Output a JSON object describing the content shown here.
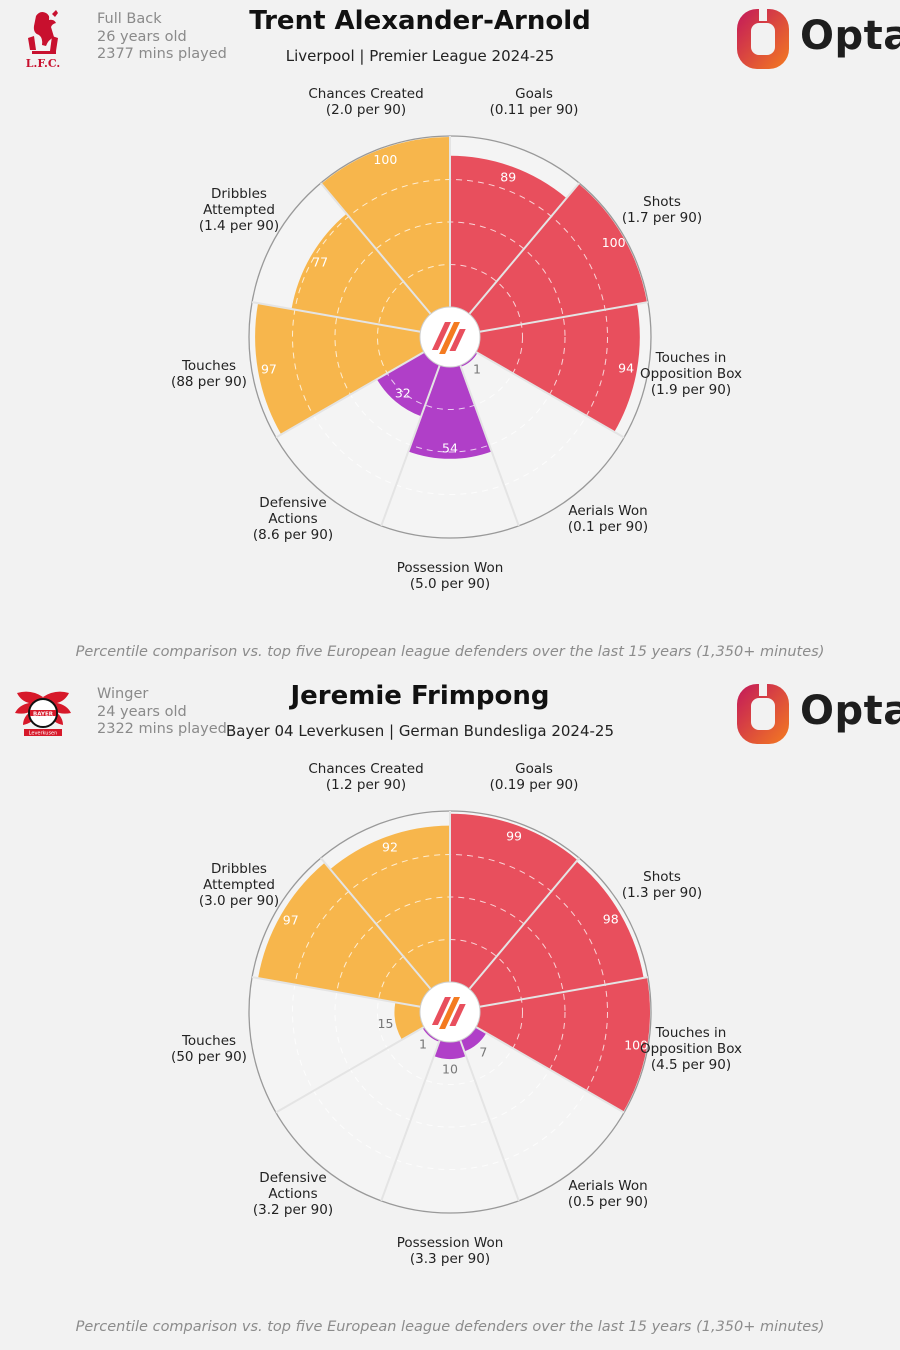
{
  "colors": {
    "attacking": "#e84f5d",
    "possession": "#f7b64c",
    "defending": "#b03fc8",
    "background": "#f2f2f2",
    "grid": "#ffffff",
    "opta_gradient": [
      "#c2185b",
      "#f47b20"
    ]
  },
  "footnote": "Percentile comparison vs. top five European league defenders over the last 15 years (1,350+ minutes)",
  "players": [
    {
      "position": "Full Back",
      "age": "26 years old",
      "minutes": "2377 mins played",
      "name": "Trent Alexander-Arnold",
      "team_league": "Liverpool | Premier League 2024-25",
      "club_crest": "liverpool-crest",
      "logo_text": "Opta"
    },
    {
      "position": "Winger",
      "age": "24 years old",
      "minutes": "2322 mins played",
      "name": "Jeremie Frimpong",
      "team_league": "Bayer 04 Leverkusen | German Bundesliga 2024-25",
      "club_crest": "leverkusen-crest",
      "logo_text": "Opta"
    }
  ],
  "chart_data": [
    {
      "type": "polar-bar",
      "title": "Trent Alexander-Arnold",
      "rlim": [
        0,
        100
      ],
      "categories": [
        {
          "label": [
            "Goals",
            "(0.11 per 90)"
          ],
          "value": 89,
          "group": "attacking"
        },
        {
          "label": [
            "Shots",
            "(1.7 per 90)"
          ],
          "value": 100,
          "group": "attacking"
        },
        {
          "label": [
            "Touches in",
            "Opposition Box",
            "(1.9 per 90)"
          ],
          "value": 94,
          "group": "attacking"
        },
        {
          "label": [
            "Aerials Won",
            "(0.1 per 90)"
          ],
          "value": 1,
          "group": "defending"
        },
        {
          "label": [
            "Possession Won",
            "(5.0 per 90)"
          ],
          "value": 54,
          "group": "defending"
        },
        {
          "label": [
            "Defensive",
            "Actions",
            "(8.6 per 90)"
          ],
          "value": 32,
          "group": "defending"
        },
        {
          "label": [
            "Touches",
            "(88 per 90)"
          ],
          "value": 97,
          "group": "possession"
        },
        {
          "label": [
            "Dribbles",
            "Attempted",
            "(1.4 per 90)"
          ],
          "value": 77,
          "group": "possession"
        },
        {
          "label": [
            "Chances Created",
            "(2.0 per 90)"
          ],
          "value": 100,
          "group": "possession"
        }
      ]
    },
    {
      "type": "polar-bar",
      "title": "Jeremie Frimpong",
      "rlim": [
        0,
        100
      ],
      "categories": [
        {
          "label": [
            "Goals",
            "(0.19 per 90)"
          ],
          "value": 99,
          "group": "attacking"
        },
        {
          "label": [
            "Shots",
            "(1.3 per 90)"
          ],
          "value": 98,
          "group": "attacking"
        },
        {
          "label": [
            "Touches in",
            "Opposition Box",
            "(4.5 per 90)"
          ],
          "value": 100,
          "group": "attacking"
        },
        {
          "label": [
            "Aerials Won",
            "(0.5 per 90)"
          ],
          "value": 7,
          "group": "defending"
        },
        {
          "label": [
            "Possession Won",
            "(3.3 per 90)"
          ],
          "value": 10,
          "group": "defending"
        },
        {
          "label": [
            "Defensive",
            "Actions",
            "(3.2 per 90)"
          ],
          "value": 1,
          "group": "defending"
        },
        {
          "label": [
            "Touches",
            "(50 per 90)"
          ],
          "value": 15,
          "group": "possession"
        },
        {
          "label": [
            "Dribbles",
            "Attempted",
            "(3.0 per 90)"
          ],
          "value": 97,
          "group": "possession"
        },
        {
          "label": [
            "Chances Created",
            "(1.2 per 90)"
          ],
          "value": 92,
          "group": "possession"
        }
      ]
    }
  ]
}
